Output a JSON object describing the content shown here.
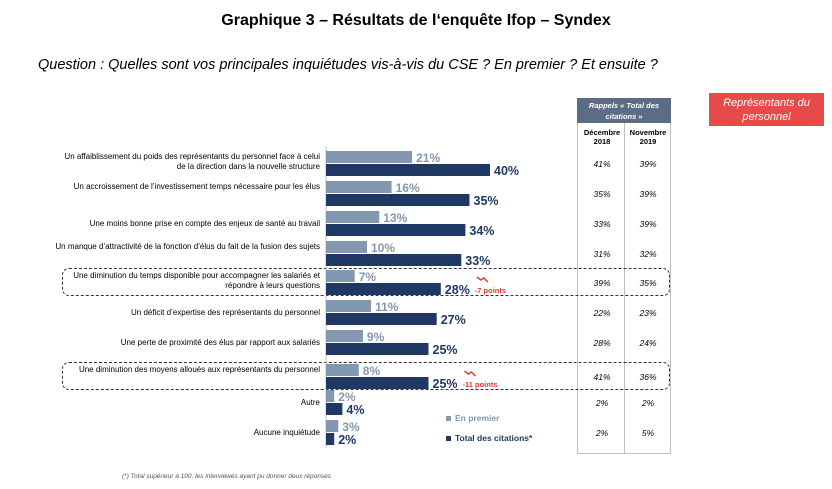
{
  "title": "Graphique 3 – Résultats de l‘enquête Ifop – Syndex",
  "question": "Question : Quelles sont vos principales inquiétudes vis-à-vis du CSE ? En premier ? Et ensuite ?",
  "rep_box": "Représentants du personnel",
  "rappels": {
    "header": "Rappels « Total des citations »",
    "col1": "Décembre 2018",
    "col2": "Novembre 2019"
  },
  "footnote": "(*) Total supérieur à 100, les interviewés ayant pu donner deux réponses",
  "chart_data": {
    "type": "bar",
    "orientation": "horizontal",
    "categories": [
      "Un affaiblissement du poids des représentants du personnel face à celui de la direction dans la nouvelle structure",
      "Un accroissement de l’investissement temps nécessaire pour les élus",
      "Une moins bonne prise en compte des enjeux de santé au travail",
      "Un manque d’attractivité de la fonction d’élus du fait de la fusion des sujets",
      "Une diminution du temps disponible pour accompagner les salariés et répondre à leurs questions",
      "Un déficit d’expertise des représentants du personnel",
      "Une perte de proximité des élus par rapport aux salariés",
      "Une diminution des moyens alloués aux représentants du personnel",
      "Autre",
      "Aucune inquiétude"
    ],
    "series": [
      {
        "name": "En premier",
        "color": "#8497b0",
        "values": [
          21,
          16,
          13,
          10,
          7,
          11,
          9,
          8,
          2,
          3
        ]
      },
      {
        "name": "Total des citations*",
        "color": "#1f3864",
        "values": [
          40,
          35,
          34,
          33,
          28,
          27,
          25,
          25,
          4,
          2
        ]
      }
    ],
    "value_suffix": "%",
    "rappels": {
      "dec2018": [
        "41%",
        "35%",
        "33%",
        "31%",
        "39%",
        "22%",
        "28%",
        "41%",
        "2%",
        "2%"
      ],
      "nov2019": [
        "39%",
        "39%",
        "39%",
        "32%",
        "35%",
        "23%",
        "24%",
        "36%",
        "2%",
        "5%"
      ]
    },
    "highlighted": [
      4,
      7
    ],
    "deltas": {
      "4": "-7 points",
      "7": "-11 points"
    }
  }
}
